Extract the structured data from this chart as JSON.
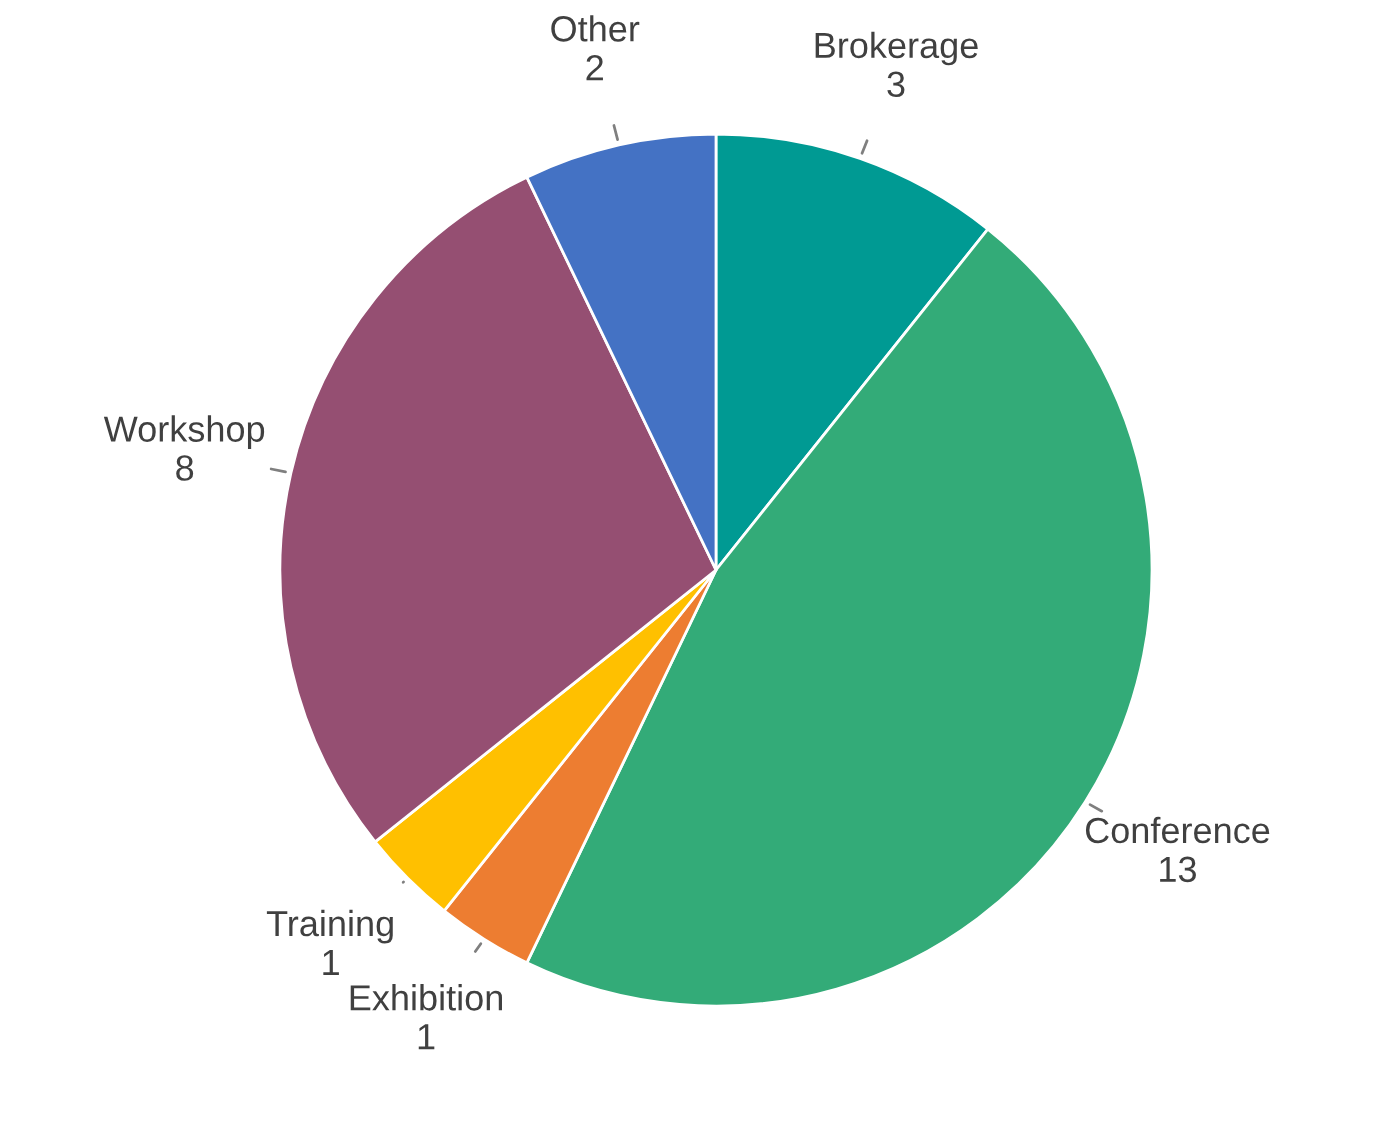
{
  "chart_data": {
    "type": "pie",
    "categories": [
      "Brokerage",
      "Conference",
      "Exhibition",
      "Training",
      "Workshop",
      "Other"
    ],
    "values": [
      3,
      13,
      1,
      1,
      8,
      2
    ],
    "colors": [
      "#009a93",
      "#33ab78",
      "#ed7d31",
      "#ffc000",
      "#954f72",
      "#4472c4"
    ],
    "data_labels": true,
    "legend": false
  }
}
